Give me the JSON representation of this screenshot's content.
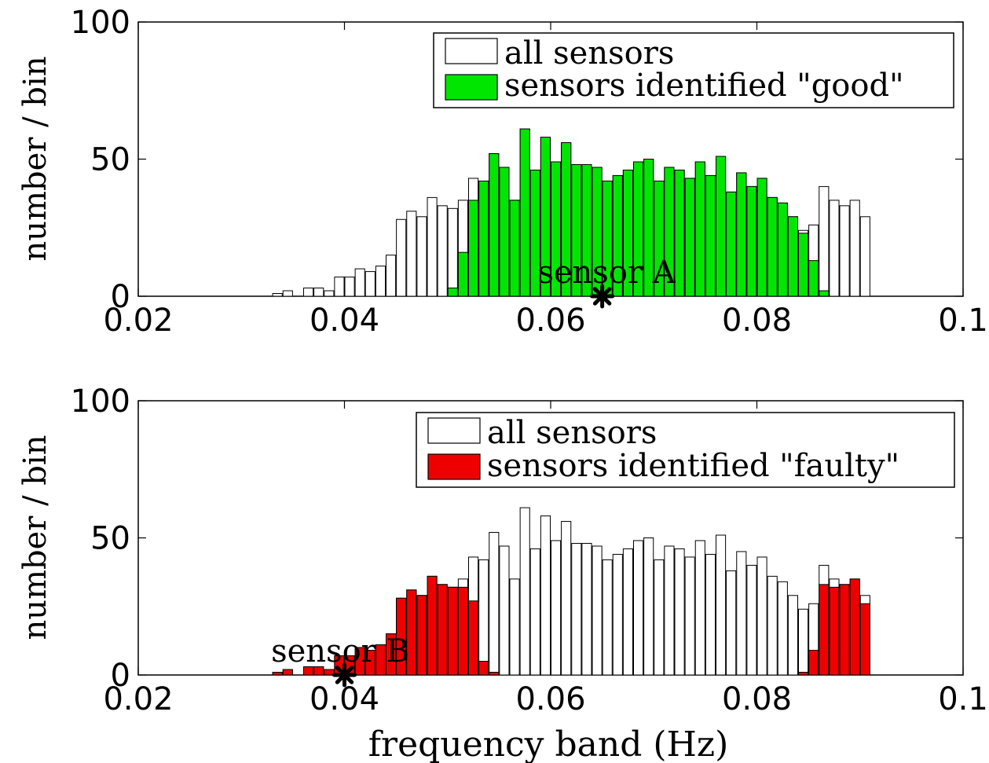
{
  "chart_data": [
    {
      "type": "bar",
      "title": "",
      "xlabel": "",
      "ylabel": "number  / bin",
      "xlim": [
        0.02,
        0.1
      ],
      "ylim": [
        0,
        100
      ],
      "xticks": [
        0.02,
        0.04,
        0.06,
        0.08,
        0.1
      ],
      "xtick_labels": [
        "0.02",
        "0.04",
        "0.06",
        "0.08",
        "0.1"
      ],
      "yticks": [
        0,
        50,
        100
      ],
      "ytick_labels": [
        "0",
        "50",
        "100"
      ],
      "bin_width": 0.001,
      "bin_starts": [
        0.033,
        0.034,
        0.035,
        0.036,
        0.037,
        0.038,
        0.039,
        0.04,
        0.041,
        0.042,
        0.043,
        0.044,
        0.045,
        0.046,
        0.047,
        0.048,
        0.049,
        0.05,
        0.051,
        0.052,
        0.053,
        0.054,
        0.055,
        0.056,
        0.057,
        0.058,
        0.059,
        0.06,
        0.061,
        0.062,
        0.063,
        0.064,
        0.065,
        0.066,
        0.067,
        0.068,
        0.069,
        0.07,
        0.071,
        0.072,
        0.073,
        0.074,
        0.075,
        0.076,
        0.077,
        0.078,
        0.079,
        0.08,
        0.081,
        0.082,
        0.083,
        0.084,
        0.085,
        0.086,
        0.087,
        0.088,
        0.089,
        0.09
      ],
      "series": [
        {
          "name": "all sensors",
          "color": "#ffffff",
          "values": [
            1,
            2,
            0,
            3,
            3,
            2,
            7,
            7,
            10,
            9,
            11,
            15,
            28,
            31,
            29,
            36,
            33,
            32,
            35,
            43,
            42,
            52,
            47,
            35,
            61,
            46,
            58,
            49,
            56,
            48,
            48,
            47,
            42,
            44,
            46,
            49,
            50,
            42,
            47,
            46,
            43,
            49,
            44,
            51,
            38,
            45,
            40,
            43,
            36,
            34,
            29,
            24,
            26,
            40,
            35,
            33,
            35,
            29
          ]
        },
        {
          "name": "sensors identified \"good\"",
          "color": "#00e600",
          "values": [
            0,
            0,
            0,
            0,
            0,
            0,
            0,
            0,
            0,
            0,
            0,
            0,
            0,
            0,
            0,
            0,
            0,
            3,
            16,
            35,
            42,
            52,
            47,
            35,
            61,
            46,
            58,
            49,
            56,
            48,
            48,
            47,
            42,
            44,
            46,
            49,
            50,
            42,
            47,
            46,
            43,
            49,
            44,
            51,
            38,
            45,
            40,
            43,
            36,
            34,
            29,
            23,
            13,
            2,
            0,
            0,
            0,
            0
          ]
        }
      ],
      "legend_position": "top-right",
      "annotation": {
        "label": "sensor  A",
        "x": 0.065,
        "y": 0
      }
    },
    {
      "type": "bar",
      "title": "",
      "xlabel": "frequency band (Hz)",
      "ylabel": "number  / bin",
      "xlim": [
        0.02,
        0.1
      ],
      "ylim": [
        0,
        100
      ],
      "xticks": [
        0.02,
        0.04,
        0.06,
        0.08,
        0.1
      ],
      "xtick_labels": [
        "0.02",
        "0.04",
        "0.06",
        "0.08",
        "0.1"
      ],
      "yticks": [
        0,
        50,
        100
      ],
      "ytick_labels": [
        "0",
        "50",
        "100"
      ],
      "bin_width": 0.001,
      "bin_starts": [
        0.033,
        0.034,
        0.035,
        0.036,
        0.037,
        0.038,
        0.039,
        0.04,
        0.041,
        0.042,
        0.043,
        0.044,
        0.045,
        0.046,
        0.047,
        0.048,
        0.049,
        0.05,
        0.051,
        0.052,
        0.053,
        0.054,
        0.055,
        0.056,
        0.057,
        0.058,
        0.059,
        0.06,
        0.061,
        0.062,
        0.063,
        0.064,
        0.065,
        0.066,
        0.067,
        0.068,
        0.069,
        0.07,
        0.071,
        0.072,
        0.073,
        0.074,
        0.075,
        0.076,
        0.077,
        0.078,
        0.079,
        0.08,
        0.081,
        0.082,
        0.083,
        0.084,
        0.085,
        0.086,
        0.087,
        0.088,
        0.089,
        0.09
      ],
      "series": [
        {
          "name": "all sensors",
          "color": "#ffffff",
          "values": [
            1,
            2,
            0,
            3,
            3,
            2,
            7,
            7,
            10,
            9,
            11,
            15,
            28,
            31,
            29,
            36,
            33,
            32,
            35,
            43,
            42,
            52,
            47,
            35,
            61,
            46,
            58,
            49,
            56,
            48,
            48,
            47,
            42,
            44,
            46,
            49,
            50,
            42,
            47,
            46,
            43,
            49,
            44,
            51,
            38,
            45,
            40,
            43,
            36,
            34,
            29,
            24,
            26,
            40,
            35,
            33,
            35,
            29
          ]
        },
        {
          "name": "sensors identified \"faulty\"",
          "color": "#ee0000",
          "values": [
            1,
            2,
            0,
            3,
            3,
            2,
            7,
            7,
            10,
            9,
            11,
            15,
            28,
            31,
            29,
            36,
            33,
            32,
            32,
            27,
            5,
            1,
            0,
            0,
            0,
            0,
            0,
            0,
            0,
            0,
            0,
            0,
            0,
            0,
            0,
            0,
            0,
            0,
            0,
            0,
            0,
            0,
            0,
            0,
            0,
            0,
            0,
            0,
            0,
            0,
            0,
            1,
            9,
            33,
            32,
            33,
            35,
            26
          ]
        }
      ],
      "legend_position": "top-right",
      "annotation": {
        "label": "sensor  B",
        "x": 0.04,
        "y": 0
      }
    }
  ]
}
